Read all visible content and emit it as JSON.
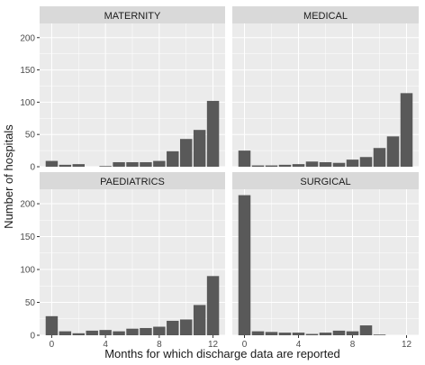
{
  "chart_data": {
    "type": "bar",
    "xlabel": "Months for which discharge data are reported",
    "ylabel": "Number of hospitals",
    "categories": [
      0,
      1,
      2,
      3,
      4,
      5,
      6,
      7,
      8,
      9,
      10,
      11,
      12
    ],
    "x_ticks": [
      0,
      4,
      8,
      12
    ],
    "y_ticks": [
      0,
      50,
      100,
      150,
      200
    ],
    "ylim": [
      0,
      222
    ],
    "grid": true,
    "colors": {
      "bar": "#595959",
      "panel": "#ebebeb",
      "strip": "#d9d9d9",
      "grid": "#ffffff",
      "text": "#1a1a1a",
      "tick": "#4d4d4d"
    },
    "panels": [
      {
        "name": "MATERNITY",
        "values": [
          9,
          3,
          4,
          0,
          1,
          7,
          7,
          7,
          9,
          24,
          43,
          57,
          102
        ]
      },
      {
        "name": "MEDICAL",
        "values": [
          25,
          2,
          2,
          3,
          4,
          8,
          7,
          6,
          11,
          15,
          29,
          47,
          114
        ]
      },
      {
        "name": "PAEDIATRICS",
        "values": [
          29,
          6,
          3,
          7,
          8,
          6,
          10,
          11,
          13,
          22,
          24,
          46,
          90
        ]
      },
      {
        "name": "SURGICAL",
        "values": [
          213,
          6,
          5,
          4,
          4,
          2,
          4,
          7,
          6,
          15,
          1,
          0,
          0
        ]
      }
    ]
  }
}
